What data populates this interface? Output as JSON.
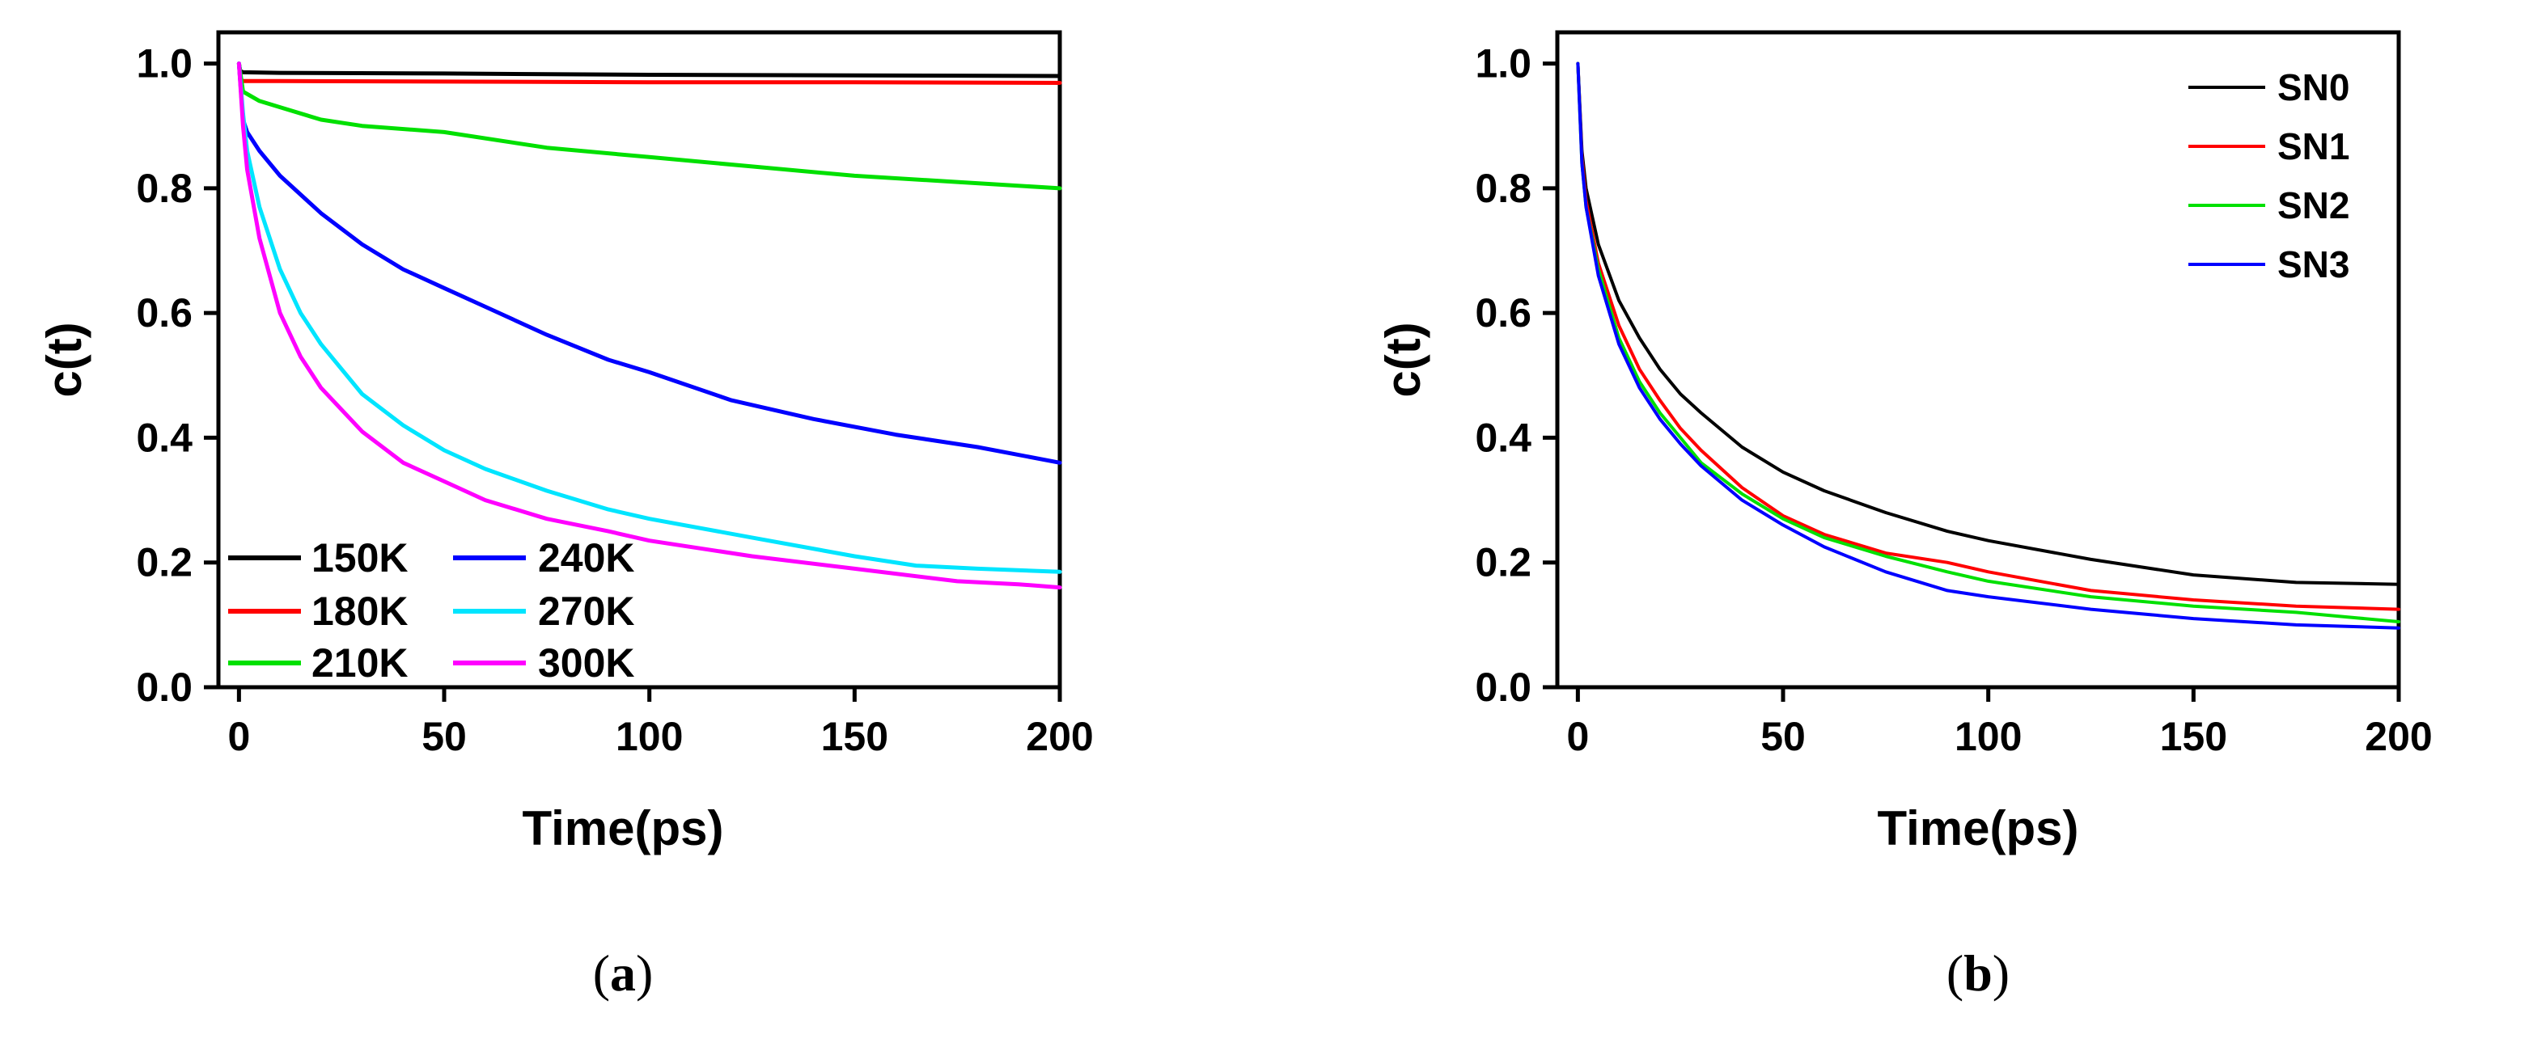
{
  "chart_data": [
    {
      "type": "line",
      "panel_label": "a",
      "xlabel": "Time(ps)",
      "ylabel": "c(t)",
      "xlim": [
        -5,
        200
      ],
      "ylim": [
        0.0,
        1.05
      ],
      "xticks": [
        0,
        50,
        100,
        150,
        200
      ],
      "yticks": [
        0.0,
        0.2,
        0.4,
        0.6,
        0.8,
        1.0
      ],
      "xtick_labels": [
        "0",
        "50",
        "100",
        "150",
        "200"
      ],
      "ytick_labels": [
        "0.0",
        "0.2",
        "0.4",
        "0.6",
        "0.8",
        "1.0"
      ],
      "legend_position": "bottom-left",
      "series": [
        {
          "name": "150K",
          "color": "#000000",
          "x": [
            0,
            0.3,
            1,
            10,
            50,
            100,
            150,
            200
          ],
          "y": [
            1.0,
            0.988,
            0.986,
            0.985,
            0.984,
            0.982,
            0.981,
            0.98
          ]
        },
        {
          "name": "180K",
          "color": "#ff0000",
          "x": [
            0,
            0.3,
            1,
            10,
            50,
            100,
            150,
            200
          ],
          "y": [
            1.0,
            0.975,
            0.972,
            0.972,
            0.971,
            0.97,
            0.97,
            0.969
          ]
        },
        {
          "name": "210K",
          "color": "#00e000",
          "x": [
            0,
            1,
            5,
            10,
            20,
            30,
            50,
            75,
            100,
            125,
            150,
            175,
            200
          ],
          "y": [
            1.0,
            0.955,
            0.94,
            0.93,
            0.91,
            0.9,
            0.89,
            0.865,
            0.85,
            0.835,
            0.82,
            0.81,
            0.8
          ]
        },
        {
          "name": "240K",
          "color": "#0000ff",
          "x": [
            0,
            1,
            2,
            5,
            10,
            20,
            30,
            40,
            50,
            60,
            75,
            90,
            100,
            120,
            140,
            160,
            180,
            200
          ],
          "y": [
            1.0,
            0.91,
            0.89,
            0.86,
            0.82,
            0.76,
            0.71,
            0.67,
            0.64,
            0.61,
            0.565,
            0.525,
            0.505,
            0.46,
            0.43,
            0.405,
            0.385,
            0.36
          ]
        },
        {
          "name": "270K",
          "color": "#00e5ff",
          "x": [
            0,
            1,
            2,
            5,
            10,
            15,
            20,
            30,
            40,
            50,
            60,
            75,
            90,
            100,
            125,
            150,
            165,
            180,
            200
          ],
          "y": [
            1.0,
            0.92,
            0.86,
            0.77,
            0.67,
            0.6,
            0.55,
            0.47,
            0.42,
            0.38,
            0.35,
            0.315,
            0.285,
            0.27,
            0.24,
            0.21,
            0.195,
            0.19,
            0.185
          ]
        },
        {
          "name": "300K",
          "color": "#ff00ff",
          "x": [
            0,
            1,
            2,
            5,
            10,
            15,
            20,
            30,
            40,
            50,
            60,
            75,
            90,
            100,
            125,
            150,
            175,
            190,
            200
          ],
          "y": [
            1.0,
            0.9,
            0.83,
            0.72,
            0.6,
            0.53,
            0.48,
            0.41,
            0.36,
            0.33,
            0.3,
            0.27,
            0.25,
            0.235,
            0.21,
            0.19,
            0.17,
            0.165,
            0.16
          ]
        }
      ]
    },
    {
      "type": "line",
      "panel_label": "b",
      "xlabel": "Time(ps)",
      "ylabel": "c(t)",
      "xlim": [
        -5,
        200
      ],
      "ylim": [
        0.0,
        1.05
      ],
      "xticks": [
        0,
        50,
        100,
        150,
        200
      ],
      "yticks": [
        0.0,
        0.2,
        0.4,
        0.6,
        0.8,
        1.0
      ],
      "xtick_labels": [
        "0",
        "50",
        "100",
        "150",
        "200"
      ],
      "ytick_labels": [
        "0.0",
        "0.2",
        "0.4",
        "0.6",
        "0.8",
        "1.0"
      ],
      "legend_position": "top-right",
      "series": [
        {
          "name": "SN0",
          "color": "#000000",
          "x": [
            0,
            1,
            2,
            5,
            10,
            15,
            20,
            25,
            30,
            40,
            50,
            60,
            75,
            90,
            100,
            125,
            150,
            175,
            200
          ],
          "y": [
            1.0,
            0.86,
            0.8,
            0.71,
            0.62,
            0.56,
            0.51,
            0.47,
            0.44,
            0.385,
            0.345,
            0.315,
            0.28,
            0.25,
            0.235,
            0.205,
            0.18,
            0.168,
            0.165
          ]
        },
        {
          "name": "SN1",
          "color": "#ff0000",
          "x": [
            0,
            1,
            2,
            5,
            10,
            15,
            20,
            25,
            30,
            40,
            50,
            60,
            75,
            90,
            100,
            125,
            150,
            175,
            200
          ],
          "y": [
            1.0,
            0.85,
            0.78,
            0.68,
            0.58,
            0.51,
            0.46,
            0.415,
            0.38,
            0.32,
            0.275,
            0.245,
            0.215,
            0.2,
            0.185,
            0.155,
            0.14,
            0.13,
            0.125
          ]
        },
        {
          "name": "SN2",
          "color": "#00e000",
          "x": [
            0,
            1,
            2,
            5,
            10,
            15,
            20,
            25,
            30,
            40,
            50,
            60,
            75,
            90,
            100,
            125,
            150,
            175,
            200
          ],
          "y": [
            1.0,
            0.84,
            0.77,
            0.67,
            0.56,
            0.49,
            0.44,
            0.4,
            0.36,
            0.31,
            0.27,
            0.24,
            0.21,
            0.185,
            0.17,
            0.145,
            0.13,
            0.12,
            0.105
          ]
        },
        {
          "name": "SN3",
          "color": "#0000ff",
          "x": [
            0,
            1,
            2,
            5,
            10,
            15,
            20,
            25,
            30,
            40,
            50,
            60,
            75,
            90,
            100,
            125,
            150,
            175,
            200
          ],
          "y": [
            1.0,
            0.84,
            0.77,
            0.66,
            0.55,
            0.48,
            0.43,
            0.39,
            0.355,
            0.3,
            0.26,
            0.225,
            0.185,
            0.155,
            0.145,
            0.125,
            0.11,
            0.1,
            0.095
          ]
        }
      ]
    }
  ]
}
